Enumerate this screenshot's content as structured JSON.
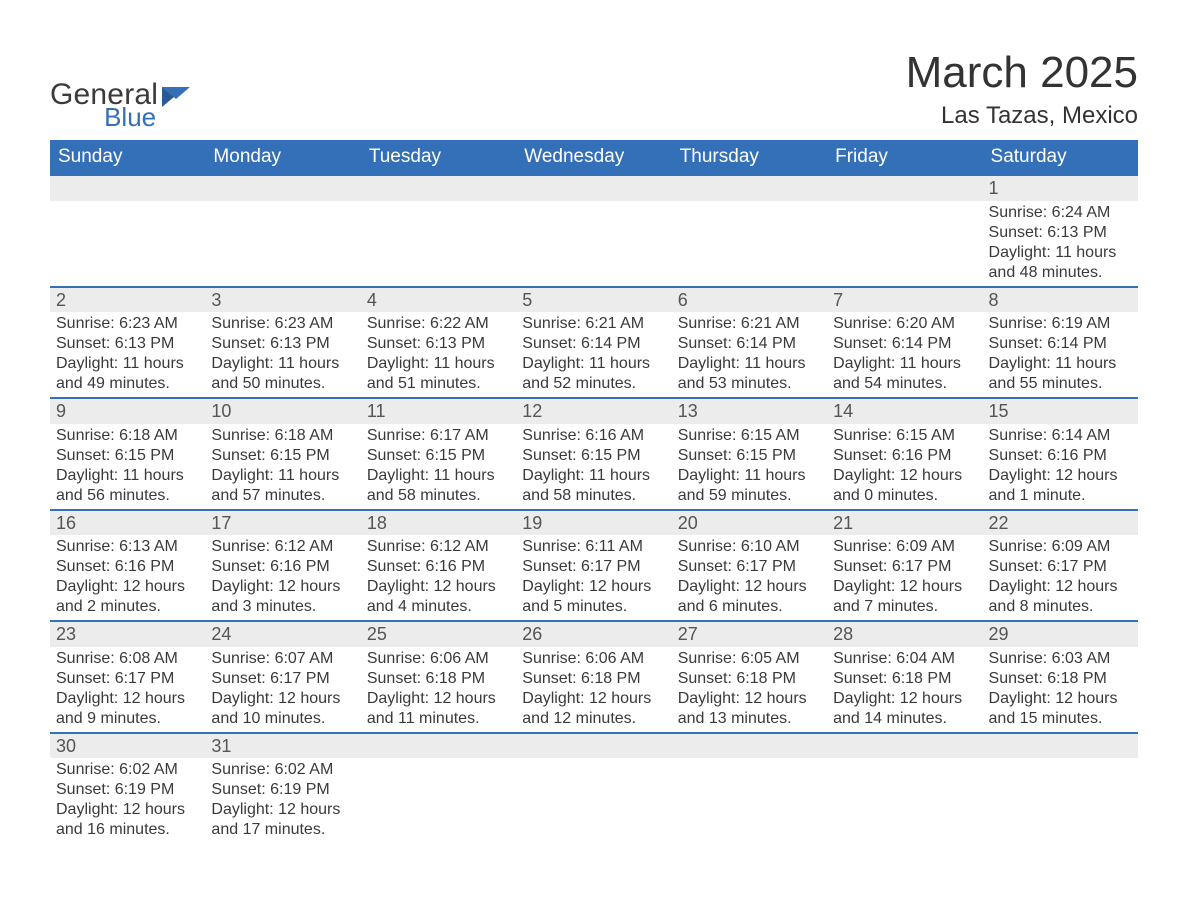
{
  "brand": {
    "word1": "General",
    "word2": "Blue",
    "primary_color": "#3470b8",
    "text_color": "#3a3a3a"
  },
  "header": {
    "title": "March 2025",
    "location": "Las Tazas, Mexico"
  },
  "colors": {
    "header_bg": "#3470b8",
    "header_text": "#ffffff",
    "daynum_bg": "#ececec",
    "daynum_text": "#555555",
    "row_border": "#3470b8",
    "cell_text": "#3a3a3a",
    "page_bg": "#ffffff"
  },
  "typography": {
    "title_fontsize": 44,
    "location_fontsize": 24,
    "header_fontsize": 19,
    "daynum_fontsize": 18,
    "cell_fontsize": 16
  },
  "weekday_labels": [
    "Sunday",
    "Monday",
    "Tuesday",
    "Wednesday",
    "Thursday",
    "Friday",
    "Saturday"
  ],
  "weeks": [
    [
      null,
      null,
      null,
      null,
      null,
      null,
      {
        "day": "1",
        "lines": [
          "Sunrise: 6:24 AM",
          "Sunset: 6:13 PM",
          "Daylight: 11 hours and 48 minutes."
        ]
      }
    ],
    [
      {
        "day": "2",
        "lines": [
          "Sunrise: 6:23 AM",
          "Sunset: 6:13 PM",
          "Daylight: 11 hours and 49 minutes."
        ]
      },
      {
        "day": "3",
        "lines": [
          "Sunrise: 6:23 AM",
          "Sunset: 6:13 PM",
          "Daylight: 11 hours and 50 minutes."
        ]
      },
      {
        "day": "4",
        "lines": [
          "Sunrise: 6:22 AM",
          "Sunset: 6:13 PM",
          "Daylight: 11 hours and 51 minutes."
        ]
      },
      {
        "day": "5",
        "lines": [
          "Sunrise: 6:21 AM",
          "Sunset: 6:14 PM",
          "Daylight: 11 hours and 52 minutes."
        ]
      },
      {
        "day": "6",
        "lines": [
          "Sunrise: 6:21 AM",
          "Sunset: 6:14 PM",
          "Daylight: 11 hours and 53 minutes."
        ]
      },
      {
        "day": "7",
        "lines": [
          "Sunrise: 6:20 AM",
          "Sunset: 6:14 PM",
          "Daylight: 11 hours and 54 minutes."
        ]
      },
      {
        "day": "8",
        "lines": [
          "Sunrise: 6:19 AM",
          "Sunset: 6:14 PM",
          "Daylight: 11 hours and 55 minutes."
        ]
      }
    ],
    [
      {
        "day": "9",
        "lines": [
          "Sunrise: 6:18 AM",
          "Sunset: 6:15 PM",
          "Daylight: 11 hours and 56 minutes."
        ]
      },
      {
        "day": "10",
        "lines": [
          "Sunrise: 6:18 AM",
          "Sunset: 6:15 PM",
          "Daylight: 11 hours and 57 minutes."
        ]
      },
      {
        "day": "11",
        "lines": [
          "Sunrise: 6:17 AM",
          "Sunset: 6:15 PM",
          "Daylight: 11 hours and 58 minutes."
        ]
      },
      {
        "day": "12",
        "lines": [
          "Sunrise: 6:16 AM",
          "Sunset: 6:15 PM",
          "Daylight: 11 hours and 58 minutes."
        ]
      },
      {
        "day": "13",
        "lines": [
          "Sunrise: 6:15 AM",
          "Sunset: 6:15 PM",
          "Daylight: 11 hours and 59 minutes."
        ]
      },
      {
        "day": "14",
        "lines": [
          "Sunrise: 6:15 AM",
          "Sunset: 6:16 PM",
          "Daylight: 12 hours and 0 minutes."
        ]
      },
      {
        "day": "15",
        "lines": [
          "Sunrise: 6:14 AM",
          "Sunset: 6:16 PM",
          "Daylight: 12 hours and 1 minute."
        ]
      }
    ],
    [
      {
        "day": "16",
        "lines": [
          "Sunrise: 6:13 AM",
          "Sunset: 6:16 PM",
          "Daylight: 12 hours and 2 minutes."
        ]
      },
      {
        "day": "17",
        "lines": [
          "Sunrise: 6:12 AM",
          "Sunset: 6:16 PM",
          "Daylight: 12 hours and 3 minutes."
        ]
      },
      {
        "day": "18",
        "lines": [
          "Sunrise: 6:12 AM",
          "Sunset: 6:16 PM",
          "Daylight: 12 hours and 4 minutes."
        ]
      },
      {
        "day": "19",
        "lines": [
          "Sunrise: 6:11 AM",
          "Sunset: 6:17 PM",
          "Daylight: 12 hours and 5 minutes."
        ]
      },
      {
        "day": "20",
        "lines": [
          "Sunrise: 6:10 AM",
          "Sunset: 6:17 PM",
          "Daylight: 12 hours and 6 minutes."
        ]
      },
      {
        "day": "21",
        "lines": [
          "Sunrise: 6:09 AM",
          "Sunset: 6:17 PM",
          "Daylight: 12 hours and 7 minutes."
        ]
      },
      {
        "day": "22",
        "lines": [
          "Sunrise: 6:09 AM",
          "Sunset: 6:17 PM",
          "Daylight: 12 hours and 8 minutes."
        ]
      }
    ],
    [
      {
        "day": "23",
        "lines": [
          "Sunrise: 6:08 AM",
          "Sunset: 6:17 PM",
          "Daylight: 12 hours and 9 minutes."
        ]
      },
      {
        "day": "24",
        "lines": [
          "Sunrise: 6:07 AM",
          "Sunset: 6:17 PM",
          "Daylight: 12 hours and 10 minutes."
        ]
      },
      {
        "day": "25",
        "lines": [
          "Sunrise: 6:06 AM",
          "Sunset: 6:18 PM",
          "Daylight: 12 hours and 11 minutes."
        ]
      },
      {
        "day": "26",
        "lines": [
          "Sunrise: 6:06 AM",
          "Sunset: 6:18 PM",
          "Daylight: 12 hours and 12 minutes."
        ]
      },
      {
        "day": "27",
        "lines": [
          "Sunrise: 6:05 AM",
          "Sunset: 6:18 PM",
          "Daylight: 12 hours and 13 minutes."
        ]
      },
      {
        "day": "28",
        "lines": [
          "Sunrise: 6:04 AM",
          "Sunset: 6:18 PM",
          "Daylight: 12 hours and 14 minutes."
        ]
      },
      {
        "day": "29",
        "lines": [
          "Sunrise: 6:03 AM",
          "Sunset: 6:18 PM",
          "Daylight: 12 hours and 15 minutes."
        ]
      }
    ],
    [
      {
        "day": "30",
        "lines": [
          "Sunrise: 6:02 AM",
          "Sunset: 6:19 PM",
          "Daylight: 12 hours and 16 minutes."
        ]
      },
      {
        "day": "31",
        "lines": [
          "Sunrise: 6:02 AM",
          "Sunset: 6:19 PM",
          "Daylight: 12 hours and 17 minutes."
        ]
      },
      null,
      null,
      null,
      null,
      null
    ]
  ]
}
